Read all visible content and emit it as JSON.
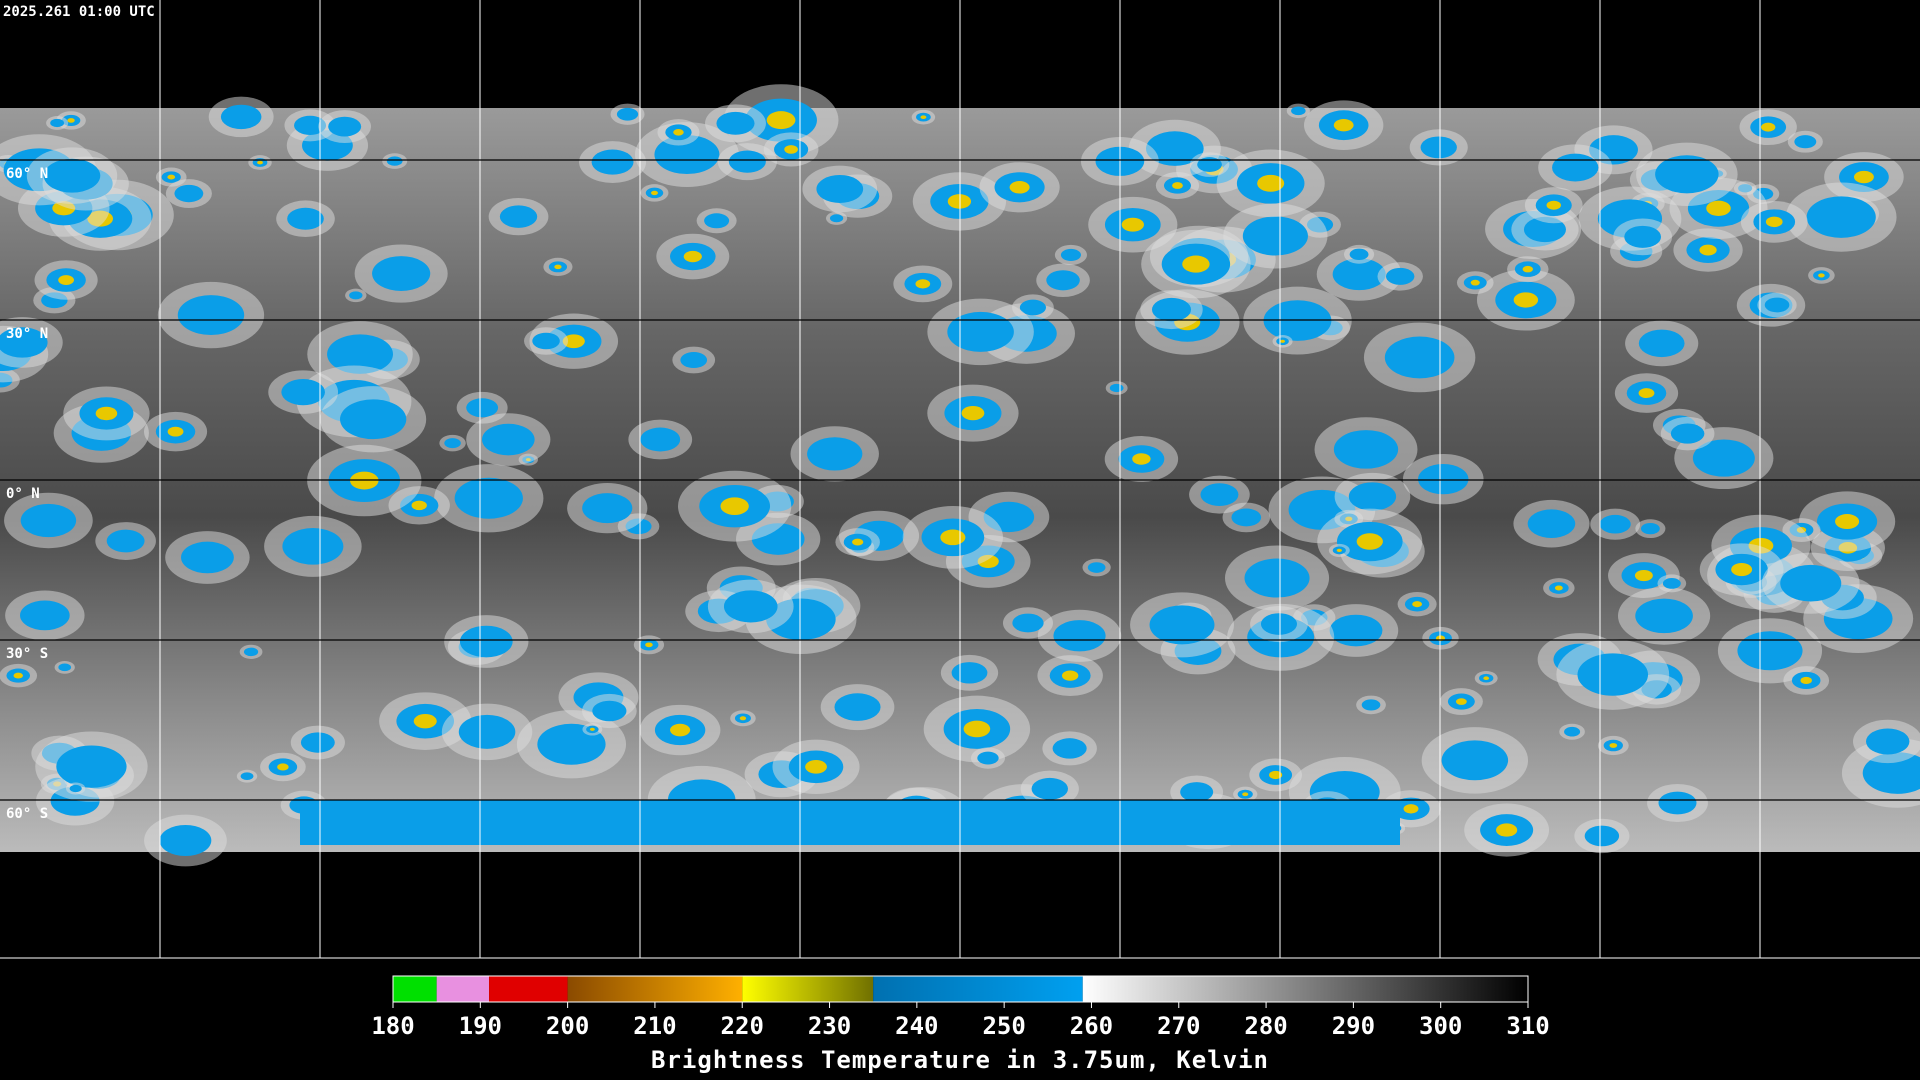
{
  "header": {
    "timestamp": "2025.261 01:00 UTC"
  },
  "map": {
    "lat_labels": [
      "60° N",
      "30° N",
      "0° N",
      "30° S",
      "60° S"
    ]
  },
  "colorbar": {
    "title": "Brightness Temperature in 3.75um, Kelvin",
    "range": [
      180,
      310
    ],
    "ticks": [
      180,
      190,
      200,
      210,
      220,
      230,
      240,
      250,
      260,
      270,
      280,
      290,
      300,
      310
    ],
    "segments": [
      {
        "from": 180,
        "to": 185,
        "colors": [
          "#00e000",
          "#00e000"
        ]
      },
      {
        "from": 185,
        "to": 191,
        "colors": [
          "#e890e0",
          "#e890e0"
        ]
      },
      {
        "from": 191,
        "to": 200,
        "colors": [
          "#e00000",
          "#e00000"
        ]
      },
      {
        "from": 200,
        "to": 220,
        "colors": [
          "#8a4a00",
          "#ffb000"
        ]
      },
      {
        "from": 220,
        "to": 235,
        "colors": [
          "#ffff00",
          "#707000"
        ]
      },
      {
        "from": 235,
        "to": 259,
        "colors": [
          "#0070b0",
          "#00a0f0"
        ]
      },
      {
        "from": 259,
        "to": 310,
        "colors": [
          "#ffffff",
          "#000000"
        ]
      }
    ]
  }
}
